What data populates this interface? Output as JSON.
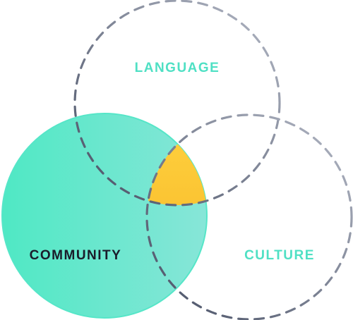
{
  "diagram": {
    "sets": [
      {
        "id": "language",
        "label": "LANGUAGE",
        "style": "dashed-outline"
      },
      {
        "id": "culture",
        "label": "CULTURE",
        "style": "dashed-outline"
      },
      {
        "id": "community",
        "label": "COMMUNITY",
        "style": "filled"
      }
    ],
    "highlight": {
      "region": "language-culture-community-intersection"
    },
    "colors": {
      "community_fill_start": "#4fe8c4",
      "community_fill_end": "#87e6d8",
      "community_stroke": "#56e6c8",
      "dashed_outline_dark": "#464e63",
      "dashed_outline_light": "#b4b9c6",
      "accent_label": "#4fe0c4",
      "dark_label": "#1a1c2a",
      "highlight_start": "#ffd23f",
      "highlight_end": "#f5b324"
    }
  }
}
